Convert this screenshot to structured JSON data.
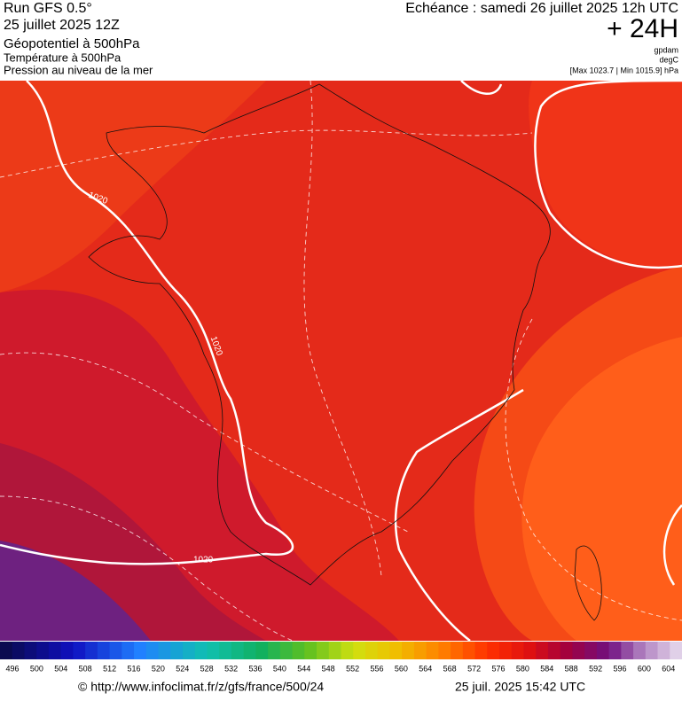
{
  "header": {
    "run": "Run GFS 0.5°",
    "run_date": "25 juillet 2025 12Z",
    "field_1": "Géopotentiel à 500hPa",
    "field_2": "Température à 500hPa",
    "field_3": "Pression au niveau de la mer",
    "valid": "Echéance : samedi 26 juillet 2025 12h UTC",
    "lead": "+ 24H",
    "unit_1": "gpdam",
    "unit_2": "degC",
    "pressure_range": "[Max 1023.7 | Min 1015.9] hPa"
  },
  "map": {
    "isobar_labels": [
      "1020",
      "1020",
      "1020"
    ]
  },
  "colorbar": {
    "labels": [
      "496",
      "500",
      "504",
      "508",
      "512",
      "516",
      "520",
      "524",
      "528",
      "532",
      "536",
      "540",
      "544",
      "548",
      "552",
      "556",
      "560",
      "564",
      "568",
      "572",
      "576",
      "580",
      "584",
      "588",
      "592",
      "596",
      "600",
      "604"
    ]
  },
  "footer": {
    "source": "© http://www.infoclimat.fr/z/gfs/france/500/24",
    "generated": "25 juil. 2025 15:42 UTC"
  }
}
